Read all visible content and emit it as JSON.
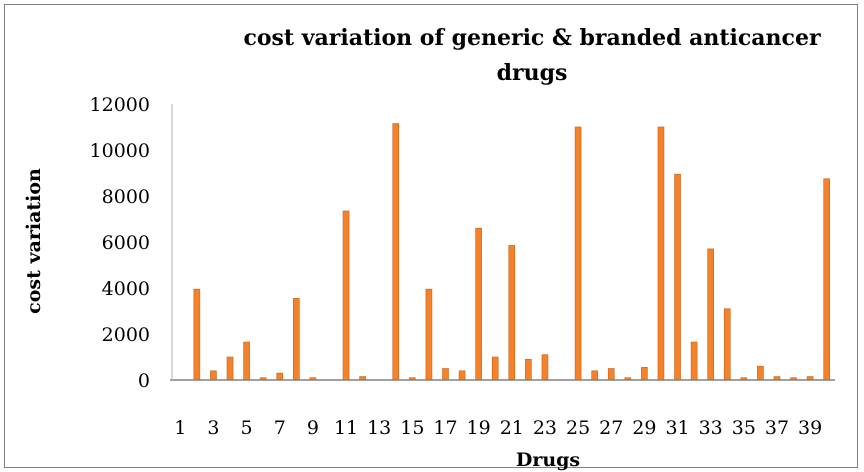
{
  "chart_data": {
    "type": "bar",
    "title": "cost variation of generic & branded anticancer drugs",
    "title_lines": [
      "cost variation of generic & branded anticancer",
      "drugs"
    ],
    "xlabel": "Drugs",
    "ylabel": "cost variation",
    "ylim": [
      0,
      12000
    ],
    "yticks": [
      0,
      2000,
      4000,
      6000,
      8000,
      10000,
      12000
    ],
    "grid": false,
    "legend": "none",
    "bar_color": "#f4822b",
    "categories": [
      "1",
      "2",
      "3",
      "4",
      "5",
      "6",
      "7",
      "8",
      "9",
      "10",
      "11",
      "12",
      "13",
      "14",
      "15",
      "16",
      "17",
      "18",
      "19",
      "20",
      "21",
      "22",
      "23",
      "24",
      "25",
      "26",
      "27",
      "28",
      "29",
      "30",
      "31",
      "32",
      "33",
      "34",
      "35",
      "36",
      "37",
      "38",
      "39",
      "40"
    ],
    "tick_labels": [
      "1",
      "3",
      "5",
      "7",
      "9",
      "11",
      "13",
      "15",
      "17",
      "19",
      "21",
      "23",
      "25",
      "27",
      "29",
      "31",
      "33",
      "35",
      "37",
      "39"
    ],
    "values": [
      0,
      3950,
      400,
      1000,
      1650,
      100,
      300,
      3550,
      100,
      0,
      7350,
      150,
      0,
      11150,
      100,
      3950,
      500,
      400,
      6600,
      1000,
      5850,
      900,
      1100,
      0,
      11000,
      400,
      500,
      100,
      550,
      11000,
      8950,
      1650,
      5700,
      3100,
      100,
      600,
      150,
      100,
      150,
      8750
    ]
  }
}
